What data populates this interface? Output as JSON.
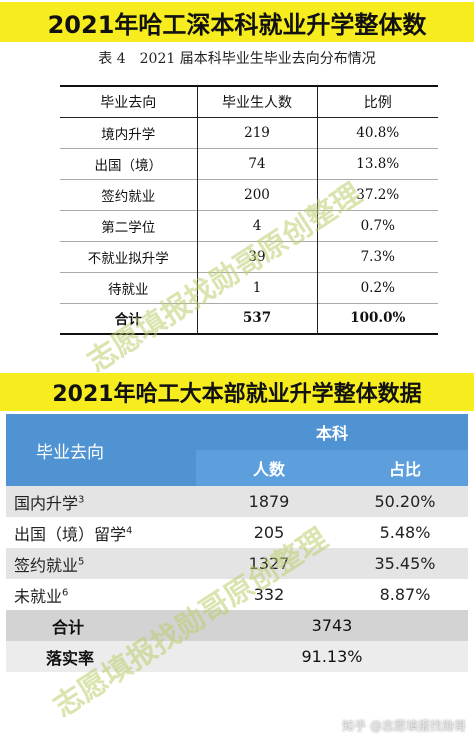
{
  "banner1": "2021年哈工深本科就业升学整体数",
  "caption": "表 4　2021 届本科毕业生毕业去向分布情况",
  "table1": {
    "headers": [
      "毕业去向",
      "毕业生人数",
      "比例"
    ],
    "rows": [
      {
        "dest": "境内升学",
        "count": "219",
        "ratio": "40.8%"
      },
      {
        "dest": "出国（境）",
        "count": "74",
        "ratio": "13.8%"
      },
      {
        "dest": "签约就业",
        "count": "200",
        "ratio": "37.2%"
      },
      {
        "dest": "第二学位",
        "count": "4",
        "ratio": "0.7%"
      },
      {
        "dest": "不就业拟升学",
        "count": "39",
        "ratio": "7.3%"
      },
      {
        "dest": "待就业",
        "count": "1",
        "ratio": "0.2%"
      }
    ],
    "total": {
      "label": "合计",
      "count": "537",
      "ratio": "100.0%"
    }
  },
  "banner2": "2021年哈工大本部就业升学整体数据",
  "table2": {
    "header_dest": "毕业去向",
    "header_group": "本科",
    "header_count": "人数",
    "header_ratio": "占比",
    "rows": [
      {
        "dest": "国内升学",
        "note": "3",
        "count": "1879",
        "ratio": "50.20%"
      },
      {
        "dest": "出国（境）留学",
        "note": "4",
        "count": "205",
        "ratio": "5.48%"
      },
      {
        "dest": "签约就业",
        "note": "5",
        "count": "1327",
        "ratio": "35.45%"
      },
      {
        "dest": "未就业",
        "note": "6",
        "count": "332",
        "ratio": "8.87%"
      }
    ],
    "total_label": "合计",
    "total_value": "3743",
    "rate_label": "落实率",
    "rate_value": "91.13%"
  },
  "watermark": "志愿填报找勋哥原创整理",
  "credit": "知乎 @志愿填报找勋哥"
}
